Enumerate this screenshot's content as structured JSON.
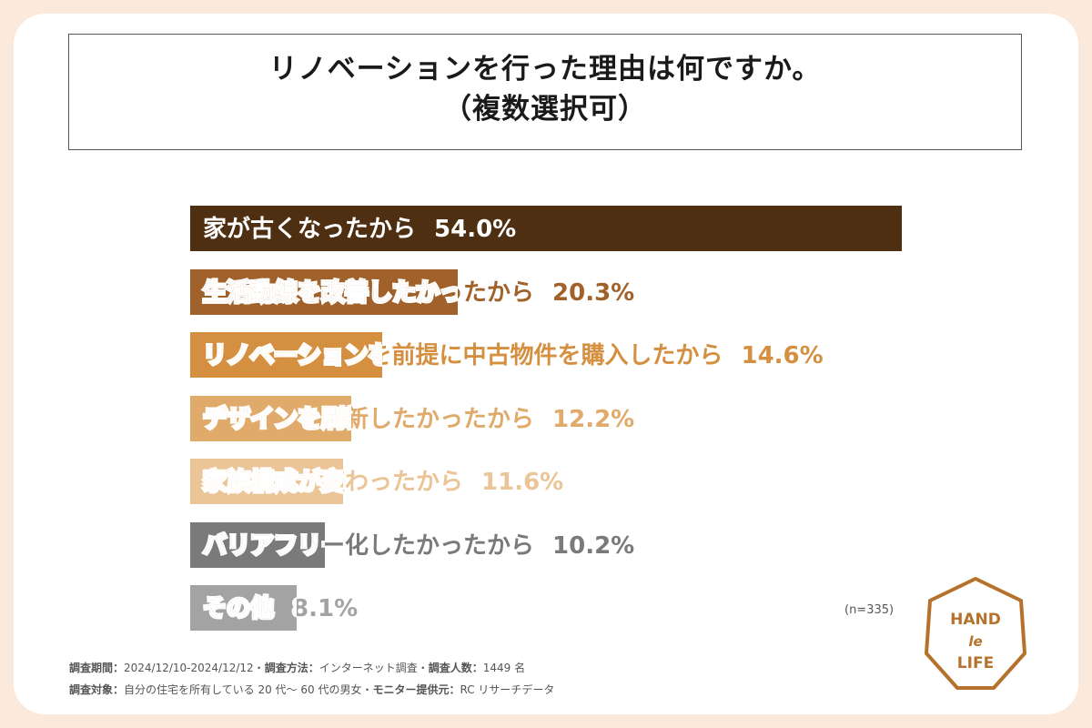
{
  "title": {
    "line1": "リノベーションを行った理由は何ですか。",
    "line2": "（複数選択可）"
  },
  "chart_data": {
    "type": "bar",
    "orientation": "horizontal",
    "categories": [
      "家が古くなったから",
      "生活動線を改善したかったから",
      "リノベーションを前提に中古物件を購入したから",
      "デザインを刷新したかったから",
      "家族構成が変わったから",
      "バリアフリー化したかったから",
      "その他"
    ],
    "values": [
      54.0,
      20.3,
      14.6,
      12.2,
      11.6,
      10.2,
      8.1
    ],
    "value_labels": [
      "54.0%",
      "20.3%",
      "14.6%",
      "12.2%",
      "11.6%",
      "10.2%",
      "8.1%"
    ],
    "bar_colors": [
      "#4e2f12",
      "#a0622a",
      "#d49040",
      "#e0aa6a",
      "#ebc597",
      "#7a7a7a",
      "#a3a3a3"
    ],
    "xlim": [
      0,
      54.0
    ],
    "grid": false,
    "legend": "none"
  },
  "sample_size": "(n=335)",
  "notes": {
    "line1_label": "調査期間：",
    "line1_text": "2024/12/10-2024/12/12・",
    "line1_label2": "調査方法：",
    "line1_text2": "インターネット調査・",
    "line1_label3": "調査人数：",
    "line1_text3": "1449 名",
    "line2_label": "調査対象：",
    "line2_text": "自分の住宅を所有している 20 代〜 60 代の男女・",
    "line2_label2": "モニター提供元：",
    "line2_text2": "RC リサーチデータ"
  },
  "logo": {
    "word1": "HAND",
    "word2": "le",
    "word3": "LIFE",
    "color": "#b5722c"
  }
}
